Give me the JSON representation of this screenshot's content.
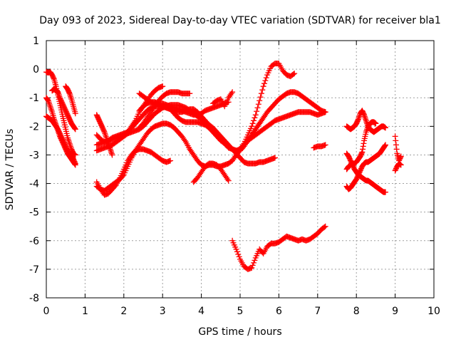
{
  "chart_data": {
    "type": "scatter",
    "title": "Day 093 of 2023, Sidereal Day-to-day VTEC variation (SDTVAR) for receiver bla1",
    "xlabel": "GPS time / hours",
    "ylabel": "SDTVAR / TECUs",
    "xlim": [
      0,
      10
    ],
    "ylim": [
      -8,
      1
    ],
    "xticks": [
      "0",
      "1",
      "2",
      "3",
      "4",
      "5",
      "6",
      "7",
      "8",
      "9",
      "10"
    ],
    "yticks": [
      "-8",
      "-7",
      "-6",
      "-5",
      "-4",
      "-3",
      "-2",
      "-1",
      "0",
      "1"
    ],
    "grid": true,
    "marker": "plus",
    "color": "#ff0000",
    "series": [
      {
        "x": [
          0.0,
          0.05,
          0.1,
          0.15,
          0.2,
          0.25,
          0.3,
          0.35,
          0.4,
          0.45,
          0.5,
          0.55,
          0.6,
          0.65,
          0.7,
          0.75
        ],
        "y": [
          -0.1,
          -0.12,
          -0.1,
          -0.2,
          -0.35,
          -0.6,
          -0.9,
          -1.2,
          -1.5,
          -1.8,
          -2.1,
          -2.4,
          -2.6,
          -2.8,
          -2.95,
          -3.0
        ]
      },
      {
        "x": [
          0.0,
          0.05,
          0.1,
          0.15,
          0.2,
          0.25,
          0.3,
          0.35,
          0.4,
          0.45,
          0.5,
          0.55,
          0.6,
          0.65,
          0.7,
          0.75
        ],
        "y": [
          -1.0,
          -1.1,
          -1.3,
          -1.5,
          -1.75,
          -1.95,
          -2.15,
          -2.35,
          -2.5,
          -2.65,
          -2.8,
          -2.95,
          -3.05,
          -3.15,
          -3.25,
          -3.35
        ]
      },
      {
        "x": [
          0.0,
          0.05,
          0.1,
          0.15,
          0.2,
          0.25,
          0.3,
          0.35,
          0.4,
          0.45,
          0.5,
          0.55,
          0.6,
          0.65,
          0.7,
          0.75
        ],
        "y": [
          -1.65,
          -1.7,
          -1.75,
          -1.8,
          -1.9,
          -2.0,
          -2.1,
          -2.25,
          -2.4,
          -2.55,
          -2.7,
          -2.85,
          -2.95,
          -3.05,
          -3.15,
          -3.3
        ]
      },
      {
        "x": [
          0.15,
          0.2,
          0.25,
          0.3,
          0.35,
          0.4,
          0.45,
          0.5,
          0.55,
          0.6,
          0.65,
          0.7,
          0.75
        ],
        "y": [
          -0.75,
          -0.7,
          -0.72,
          -0.8,
          -1.0,
          -1.15,
          -1.3,
          -1.45,
          -1.6,
          -1.75,
          -1.9,
          -2.0,
          -2.1
        ]
      },
      {
        "x": [
          0.5,
          0.55,
          0.6,
          0.65,
          0.7,
          0.75
        ],
        "y": [
          -0.6,
          -0.7,
          -0.85,
          -1.05,
          -1.3,
          -1.55
        ]
      },
      {
        "x": [
          1.3,
          1.4,
          1.5,
          1.6,
          1.7,
          1.8,
          1.9,
          2.0,
          2.1,
          2.2,
          2.3,
          2.4,
          2.5,
          2.6,
          2.7,
          2.8,
          2.9,
          3.0,
          3.1,
          3.2,
          3.3,
          3.4,
          3.5,
          3.6,
          3.7,
          3.8,
          3.9,
          4.0,
          4.1,
          4.2,
          4.3,
          4.4,
          4.5,
          4.6,
          4.7
        ],
        "y": [
          -2.3,
          -2.45,
          -2.55,
          -2.5,
          -2.4,
          -2.35,
          -2.3,
          -2.25,
          -2.2,
          -2.0,
          -1.8,
          -1.5,
          -1.3,
          -1.2,
          -1.15,
          -1.15,
          -1.2,
          -1.2,
          -1.25,
          -1.3,
          -1.35,
          -1.4,
          -1.45,
          -1.5,
          -1.55,
          -1.6,
          -1.6,
          -1.55,
          -1.45,
          -1.4,
          -1.35,
          -1.3,
          -1.25,
          -1.2,
          -1.15
        ]
      },
      {
        "x": [
          1.3,
          1.4,
          1.5,
          1.6,
          1.7,
          1.8,
          1.9,
          2.0,
          2.1,
          2.2,
          2.3,
          2.4,
          2.5,
          2.6,
          2.7,
          2.8,
          2.9,
          3.0,
          3.1,
          3.2,
          3.3,
          3.4,
          3.5,
          3.6,
          3.7,
          3.8,
          3.9,
          4.0,
          4.1,
          4.2,
          4.3,
          4.4,
          4.5,
          4.6,
          4.7,
          4.8,
          4.9,
          5.0,
          5.1,
          5.2,
          5.3,
          5.4,
          5.5,
          5.6,
          5.7,
          5.8,
          5.9
        ],
        "y": [
          -2.65,
          -2.6,
          -2.55,
          -2.5,
          -2.45,
          -2.4,
          -2.35,
          -2.3,
          -2.2,
          -2.05,
          -1.9,
          -1.75,
          -1.6,
          -1.45,
          -1.35,
          -1.3,
          -1.3,
          -1.3,
          -1.35,
          -1.4,
          -1.45,
          -1.5,
          -1.5,
          -1.45,
          -1.4,
          -1.4,
          -1.5,
          -1.65,
          -1.8,
          -1.95,
          -2.05,
          -2.2,
          -2.35,
          -2.5,
          -2.65,
          -2.8,
          -2.95,
          -3.1,
          -3.25,
          -3.3,
          -3.3,
          -3.3,
          -3.25,
          -3.25,
          -3.2,
          -3.15,
          -3.1
        ]
      },
      {
        "x": [
          1.3,
          1.4,
          1.5,
          1.6,
          1.7,
          1.8,
          1.9,
          2.0,
          2.1,
          2.2,
          2.3,
          2.4,
          2.5,
          2.6,
          2.7,
          2.8,
          2.9,
          3.0,
          3.1,
          3.2,
          3.3,
          3.4,
          3.5,
          3.6,
          3.7,
          3.8,
          3.9,
          4.0,
          4.1,
          4.2,
          4.3,
          4.4,
          4.5,
          4.6,
          4.7,
          4.8,
          4.9,
          5.0,
          5.1,
          5.2,
          5.3,
          5.4,
          5.5
        ],
        "y": [
          -2.85,
          -2.8,
          -2.75,
          -2.7,
          -2.65,
          -2.55,
          -2.45,
          -2.35,
          -2.25,
          -2.2,
          -2.15,
          -2.1,
          -2.0,
          -1.85,
          -1.7,
          -1.55,
          -1.45,
          -1.35,
          -1.3,
          -1.25,
          -1.25,
          -1.25,
          -1.3,
          -1.35,
          -1.45,
          -1.55,
          -1.65,
          -1.75,
          -1.9,
          -2.05,
          -2.2,
          -2.35,
          -2.5,
          -2.6,
          -2.7,
          -2.8,
          -2.85,
          -2.85,
          -2.7,
          -2.5,
          -2.3,
          -2.1,
          -1.9
        ]
      },
      {
        "x": [
          1.3,
          1.4,
          1.5,
          1.6,
          1.7,
          1.8,
          1.9,
          2.0,
          2.1,
          2.2,
          2.3,
          2.4,
          2.5,
          2.6,
          2.7,
          2.8,
          2.9,
          3.0,
          3.1,
          3.2
        ],
        "y": [
          -3.95,
          -4.2,
          -4.4,
          -4.35,
          -4.2,
          -4.05,
          -3.8,
          -3.5,
          -3.2,
          -3.0,
          -2.85,
          -2.8,
          -2.8,
          -2.85,
          -2.9,
          -3.0,
          -3.1,
          -3.2,
          -3.25,
          -3.2
        ]
      },
      {
        "x": [
          1.3,
          1.4,
          1.5,
          1.6,
          1.7,
          1.8,
          1.9,
          2.0,
          2.1,
          2.2,
          2.3,
          2.4,
          2.5,
          2.6,
          2.7,
          2.8,
          2.9,
          3.0,
          3.1,
          3.2,
          3.3,
          3.4,
          3.5,
          3.6,
          3.7,
          3.8,
          3.9,
          4.0,
          4.1,
          4.2,
          4.3,
          4.4,
          4.5,
          4.6,
          4.7,
          4.8,
          4.9,
          5.0,
          5.1,
          5.2,
          5.3,
          5.4,
          5.5,
          5.6,
          5.7,
          5.8,
          5.9,
          6.0,
          6.1,
          6.2,
          6.3,
          6.4,
          6.5,
          6.6,
          6.7,
          6.8,
          6.9,
          7.0,
          7.1,
          7.2
        ],
        "y": [
          -4.1,
          -4.2,
          -4.25,
          -4.15,
          -4.05,
          -3.95,
          -3.85,
          -3.7,
          -3.4,
          -3.1,
          -2.85,
          -2.65,
          -2.45,
          -2.25,
          -2.1,
          -2.0,
          -1.95,
          -1.9,
          -1.9,
          -1.95,
          -2.05,
          -2.2,
          -2.35,
          -2.55,
          -2.8,
          -3.0,
          -3.2,
          -3.35,
          -3.4,
          -3.35,
          -3.35,
          -3.4,
          -3.4,
          -3.35,
          -3.3,
          -3.2,
          -3.0,
          -2.8,
          -2.65,
          -2.5,
          -2.4,
          -2.3,
          -2.2,
          -2.1,
          -2.0,
          -1.9,
          -1.8,
          -1.75,
          -1.7,
          -1.65,
          -1.6,
          -1.55,
          -1.5,
          -1.5,
          -1.5,
          -1.5,
          -1.55,
          -1.6,
          -1.55,
          -1.5
        ]
      },
      {
        "x": [
          1.3,
          1.35,
          1.4,
          1.45,
          1.5,
          1.55,
          1.6,
          1.65,
          1.7
        ],
        "y": [
          -1.6,
          -1.75,
          -1.9,
          -2.05,
          -2.2,
          -2.4,
          -2.6,
          -2.8,
          -3.0
        ]
      },
      {
        "x": [
          2.4,
          2.5,
          2.6,
          2.7,
          2.8,
          2.9,
          3.0,
          3.1,
          3.2,
          3.3,
          3.4,
          3.5,
          3.6,
          3.7,
          3.8,
          3.9,
          4.0,
          4.1,
          4.2,
          4.3,
          4.4,
          4.5,
          4.6,
          4.7,
          4.8,
          4.9,
          5.0,
          5.1,
          5.2,
          5.3,
          5.4,
          5.5,
          5.6,
          5.7,
          5.8,
          5.9,
          6.0,
          6.1,
          6.2,
          6.3,
          6.4
        ],
        "y": [
          -0.85,
          -0.95,
          -1.05,
          -1.15,
          -1.2,
          -1.25,
          -1.3,
          -1.35,
          -1.4,
          -1.55,
          -1.7,
          -1.8,
          -1.85,
          -1.85,
          -1.85,
          -1.85,
          -1.9,
          -1.95,
          -2.05,
          -2.15,
          -2.3,
          -2.45,
          -2.6,
          -2.75,
          -2.8,
          -2.85,
          -2.8,
          -2.6,
          -2.3,
          -2.0,
          -1.6,
          -1.1,
          -0.6,
          -0.2,
          0.1,
          0.2,
          0.2,
          -0.05,
          -0.2,
          -0.25,
          -0.15
        ]
      },
      {
        "x": [
          2.4,
          2.5,
          2.6,
          2.7,
          2.8,
          2.9,
          3.0,
          3.1,
          3.2,
          3.3,
          3.4,
          3.5,
          3.6,
          3.7
        ],
        "y": [
          -2.05,
          -1.9,
          -1.7,
          -1.5,
          -1.3,
          -1.1,
          -0.95,
          -0.85,
          -0.8,
          -0.8,
          -0.8,
          -0.85,
          -0.85,
          -0.85
        ]
      },
      {
        "x": [
          2.4,
          2.5,
          2.6,
          2.7,
          2.8,
          2.9,
          3.0
        ],
        "y": [
          -1.45,
          -1.3,
          -1.1,
          -0.9,
          -0.75,
          -0.65,
          -0.6
        ]
      },
      {
        "x": [
          3.8,
          3.9,
          4.0,
          4.1,
          4.2,
          4.3,
          4.4,
          4.5,
          4.6,
          4.7
        ],
        "y": [
          -3.95,
          -3.8,
          -3.6,
          -3.4,
          -3.3,
          -3.3,
          -3.35,
          -3.5,
          -3.7,
          -3.9
        ]
      },
      {
        "x": [
          4.3,
          4.4,
          4.5,
          4.6,
          4.7,
          4.8
        ],
        "y": [
          -1.2,
          -1.1,
          -1.05,
          -1.3,
          -1.0,
          -0.8
        ]
      },
      {
        "x": [
          4.8,
          4.9,
          5.0,
          5.1,
          5.2,
          5.3,
          5.4,
          5.5,
          5.6,
          5.7,
          5.8,
          5.9,
          6.0,
          6.1,
          6.2,
          6.3,
          6.4,
          6.5,
          6.6,
          6.7,
          6.8,
          6.9,
          7.0,
          7.1,
          7.2
        ],
        "y": [
          -6.0,
          -6.3,
          -6.65,
          -6.9,
          -7.0,
          -6.95,
          -6.6,
          -6.3,
          -6.45,
          -6.2,
          -6.1,
          -6.1,
          -6.05,
          -5.95,
          -5.85,
          -5.9,
          -5.95,
          -6.0,
          -5.95,
          -6.0,
          -5.95,
          -5.85,
          -5.75,
          -5.6,
          -5.5
        ]
      },
      {
        "x": [
          5.2,
          5.3,
          5.4,
          5.5,
          5.6,
          5.7,
          5.8,
          5.9,
          6.0,
          6.1,
          6.2,
          6.3,
          6.4,
          6.5,
          6.6,
          6.7,
          6.8,
          6.9,
          7.0,
          7.1,
          7.2
        ],
        "y": [
          -2.5,
          -2.3,
          -2.1,
          -1.9,
          -1.7,
          -1.5,
          -1.35,
          -1.2,
          -1.05,
          -0.95,
          -0.85,
          -0.8,
          -0.8,
          -0.85,
          -0.95,
          -1.05,
          -1.15,
          -1.25,
          -1.35,
          -1.45,
          -1.5
        ]
      },
      {
        "x": [
          6.9,
          7.0,
          7.1,
          7.2
        ],
        "y": [
          -2.75,
          -2.7,
          -2.7,
          -2.65
        ]
      },
      {
        "x": [
          7.75,
          7.8,
          7.85,
          7.9,
          7.95,
          8.0,
          8.05,
          8.1,
          8.15,
          8.2,
          8.25,
          8.3,
          8.35,
          8.4,
          8.45,
          8.5,
          8.55,
          8.6,
          8.65,
          8.7,
          8.75
        ],
        "y": [
          -2.0,
          -2.05,
          -2.1,
          -2.05,
          -2.0,
          -1.9,
          -1.75,
          -1.55,
          -1.45,
          -1.6,
          -1.8,
          -2.0,
          -2.1,
          -2.15,
          -2.2,
          -2.15,
          -2.1,
          -2.05,
          -2.0,
          -2.0,
          -2.05
        ]
      },
      {
        "x": [
          7.75,
          7.8,
          7.85,
          7.9,
          7.95,
          8.0,
          8.05,
          8.1,
          8.15,
          8.2,
          8.25,
          8.3,
          8.35,
          8.4,
          8.45,
          8.5,
          8.55,
          8.6,
          8.65,
          8.7,
          8.75
        ],
        "y": [
          -2.95,
          -3.05,
          -3.2,
          -3.35,
          -3.5,
          -3.6,
          -3.7,
          -3.75,
          -3.8,
          -3.85,
          -3.9,
          -3.9,
          -3.95,
          -4.0,
          -4.05,
          -4.1,
          -4.15,
          -4.2,
          -4.25,
          -4.3,
          -4.3
        ]
      },
      {
        "x": [
          7.75,
          7.8,
          7.85,
          7.9,
          7.95,
          8.0,
          8.05,
          8.1,
          8.15,
          8.2,
          8.25,
          8.3,
          8.35,
          8.4,
          8.45,
          8.5,
          8.55,
          8.6,
          8.65,
          8.7,
          8.75
        ],
        "y": [
          -4.1,
          -4.2,
          -4.15,
          -4.05,
          -3.95,
          -3.85,
          -3.7,
          -3.55,
          -3.4,
          -3.3,
          -3.25,
          -3.25,
          -3.2,
          -3.15,
          -3.1,
          -3.05,
          -3.0,
          -2.95,
          -2.85,
          -2.75,
          -2.65
        ]
      },
      {
        "x": [
          7.75,
          7.8,
          7.85,
          7.9,
          7.95,
          8.0,
          8.05,
          8.1,
          8.15,
          8.2,
          8.25,
          8.3,
          8.35,
          8.4,
          8.45,
          8.5
        ],
        "y": [
          -3.5,
          -3.4,
          -3.35,
          -3.3,
          -3.3,
          -3.25,
          -3.15,
          -3.05,
          -2.9,
          -2.5,
          -2.2,
          -2.0,
          -1.9,
          -1.85,
          -1.85,
          -1.9
        ]
      },
      {
        "x": [
          9.0,
          9.05,
          9.1,
          9.15
        ],
        "y": [
          -2.35,
          -2.95,
          -3.2,
          -3.05
        ]
      },
      {
        "x": [
          9.0,
          9.05,
          9.1,
          9.15
        ],
        "y": [
          -3.55,
          -3.4,
          -3.3,
          -3.35
        ]
      }
    ]
  }
}
